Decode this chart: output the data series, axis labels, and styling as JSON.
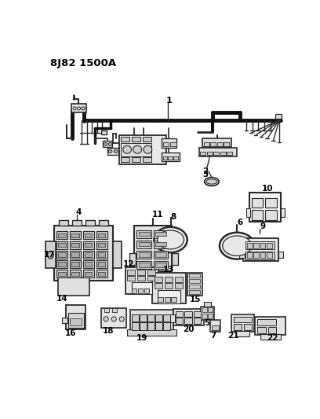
{
  "title": "8J82 1500A",
  "bg_color": "#ffffff",
  "lc": "#2a2a2a",
  "fig_width": 4.08,
  "fig_height": 5.33,
  "dpi": 100
}
